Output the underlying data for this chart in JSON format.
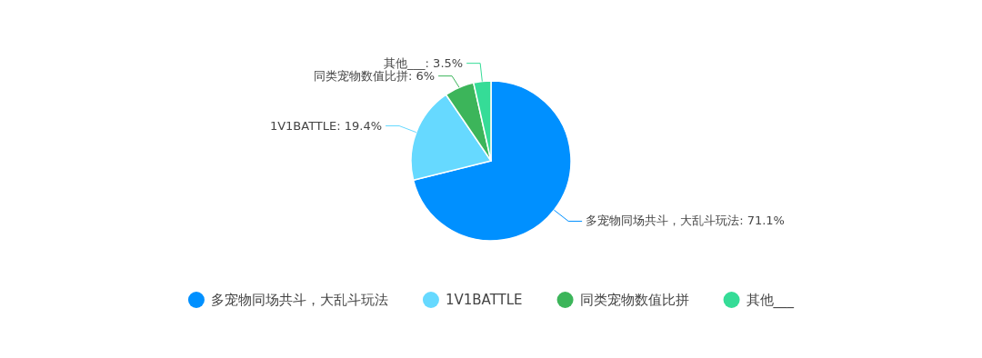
{
  "chart_data": {
    "type": "pie",
    "categories": [
      "多宠物同场共斗，大乱斗玩法",
      "1V1BATTLE",
      "同类宠物数值比拼",
      "其他___"
    ],
    "values": [
      71.1,
      19.4,
      6,
      3.5
    ],
    "colors": [
      "#0090ff",
      "#66d9ff",
      "#3cb55a",
      "#35dc97"
    ],
    "value_labels": [
      ": 71.1%",
      ": 19.4%",
      ": 6%",
      ": 3.5%"
    ],
    "legend": "bottom"
  }
}
